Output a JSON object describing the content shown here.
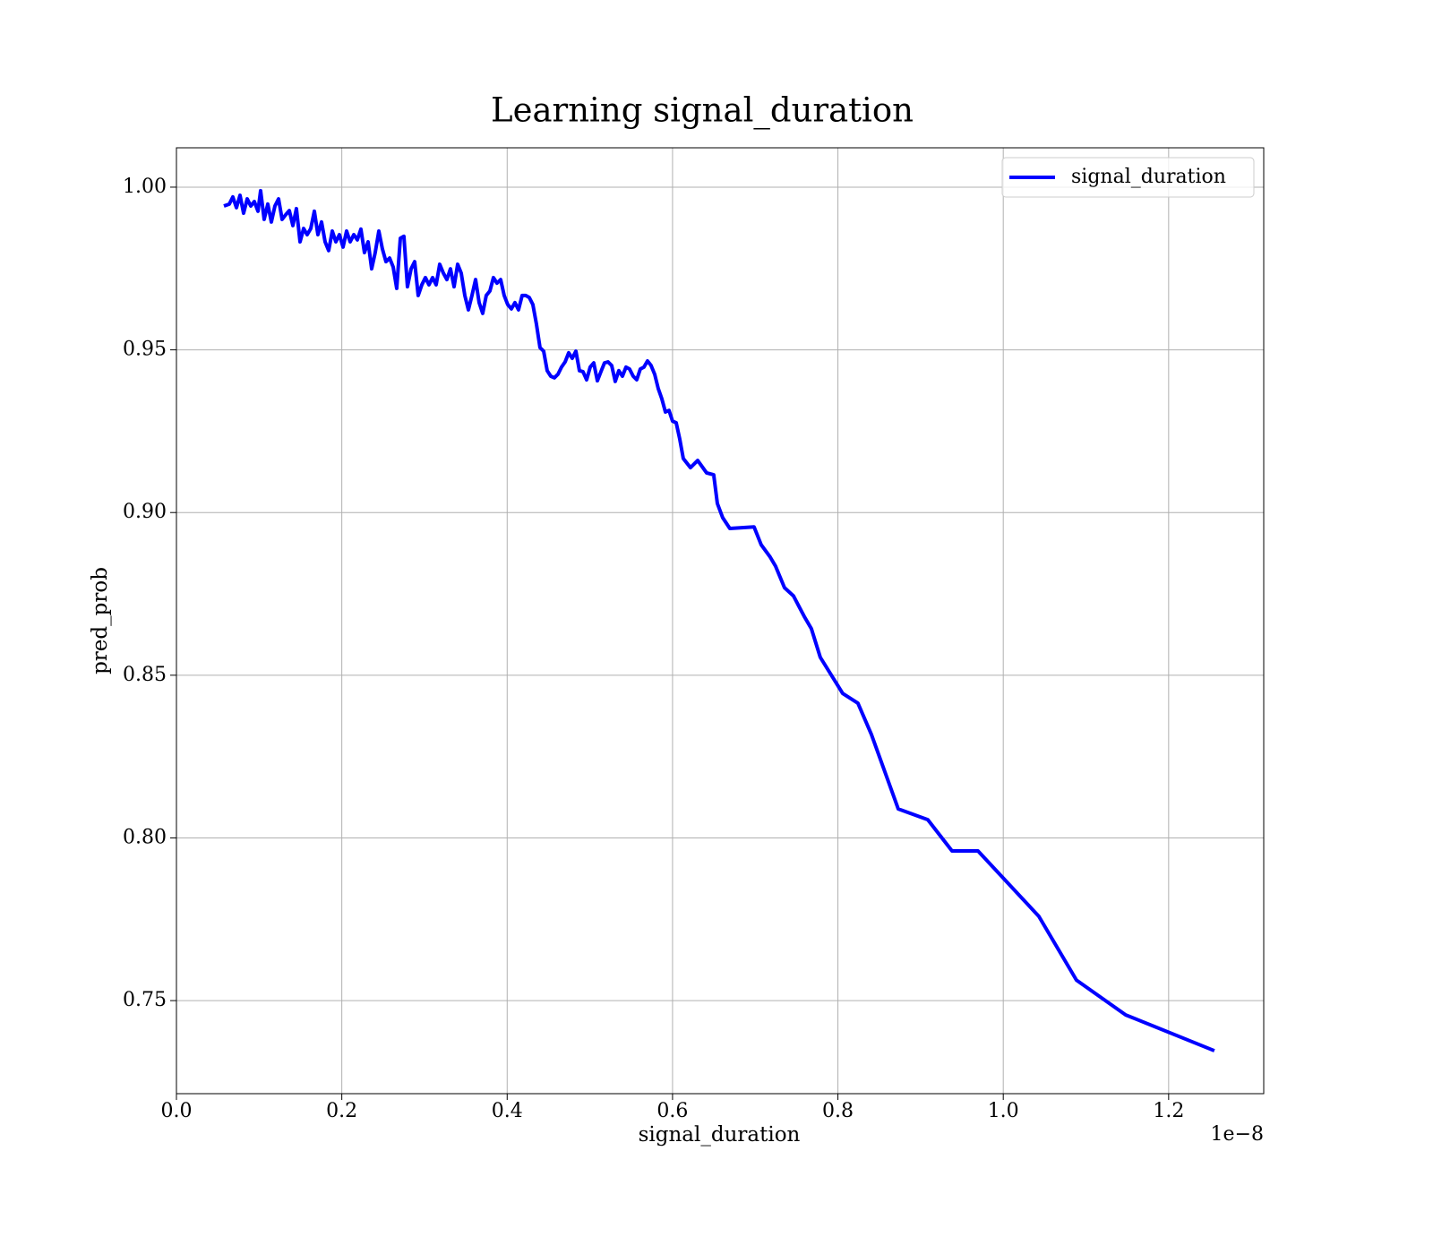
{
  "chart_data": {
    "type": "line",
    "title": "Learning signal_duration",
    "x_label": "signal_duration",
    "y_label": "pred_prob",
    "x_offset_label": "1e−8",
    "legend": "upper right",
    "grid": true,
    "xlim": [
      0,
      1.315
    ],
    "ylim": [
      0.7214,
      1.0121
    ],
    "xticks": [
      {
        "value": 0,
        "label": "0.0"
      },
      {
        "value": 0.2,
        "label": "0.2"
      },
      {
        "value": 0.4,
        "label": "0.4"
      },
      {
        "value": 0.6,
        "label": "0.6"
      },
      {
        "value": 0.8,
        "label": "0.8"
      },
      {
        "value": 1.0,
        "label": "1.0"
      },
      {
        "value": 1.2,
        "label": "1.2"
      }
    ],
    "yticks": [
      {
        "value": 0.75,
        "label": "0.75"
      },
      {
        "value": 0.8,
        "label": "0.80"
      },
      {
        "value": 0.85,
        "label": "0.85"
      },
      {
        "value": 0.9,
        "label": "0.90"
      },
      {
        "value": 0.95,
        "label": "0.95"
      },
      {
        "value": 1.0,
        "label": "1.00"
      }
    ],
    "x": [
      0.0574,
      0.0639,
      0.0682,
      0.0726,
      0.0769,
      0.0812,
      0.0856,
      0.0899,
      0.0942,
      0.0986,
      0.1018,
      0.1061,
      0.1105,
      0.1148,
      0.1191,
      0.1235,
      0.1278,
      0.1321,
      0.1365,
      0.1408,
      0.1451,
      0.1495,
      0.1538,
      0.1581,
      0.1625,
      0.1668,
      0.1711,
      0.1755,
      0.1798,
      0.1841,
      0.1885,
      0.1928,
      0.1971,
      0.2015,
      0.2058,
      0.2101,
      0.2145,
      0.2188,
      0.2231,
      0.2274,
      0.2318,
      0.2361,
      0.2404,
      0.2448,
      0.2491,
      0.2534,
      0.2578,
      0.2621,
      0.2664,
      0.2708,
      0.2751,
      0.2794,
      0.2838,
      0.2881,
      0.2924,
      0.2968,
      0.3011,
      0.3054,
      0.3098,
      0.3141,
      0.3184,
      0.3228,
      0.3271,
      0.3314,
      0.3358,
      0.3401,
      0.3444,
      0.3488,
      0.3531,
      0.3574,
      0.3618,
      0.3661,
      0.3704,
      0.3747,
      0.3791,
      0.3834,
      0.3877,
      0.3921,
      0.3964,
      0.4007,
      0.4051,
      0.4094,
      0.4137,
      0.4181,
      0.4224,
      0.4267,
      0.4311,
      0.4354,
      0.4397,
      0.4441,
      0.4484,
      0.4527,
      0.4571,
      0.4614,
      0.4657,
      0.4701,
      0.4744,
      0.4787,
      0.4831,
      0.4874,
      0.4917,
      0.4961,
      0.5004,
      0.5047,
      0.5091,
      0.5134,
      0.5177,
      0.522,
      0.5264,
      0.5307,
      0.535,
      0.5394,
      0.5437,
      0.548,
      0.5524,
      0.5567,
      0.561,
      0.5654,
      0.5697,
      0.574,
      0.5784,
      0.5827,
      0.587,
      0.5914,
      0.5957,
      0.6,
      0.6044,
      0.6087,
      0.613,
      0.6217,
      0.6304,
      0.6412,
      0.6498,
      0.6542,
      0.6607,
      0.6693,
      0.6986,
      0.7072,
      0.7181,
      0.7246,
      0.7354,
      0.7462,
      0.7592,
      0.7679,
      0.7787,
      0.8058,
      0.8242,
      0.8405,
      0.873,
      0.9087,
      0.938,
      0.9694,
      1.043,
      1.0885,
      1.1481,
      1.2553
    ],
    "series": [
      {
        "name": "signal_duration",
        "color": "#0000ff",
        "values": [
          0.9942,
          0.9948,
          0.997,
          0.9937,
          0.9975,
          0.992,
          0.9964,
          0.9942,
          0.9956,
          0.9926,
          0.9989,
          0.9901,
          0.9948,
          0.9893,
          0.9942,
          0.9964,
          0.9901,
          0.9915,
          0.9928,
          0.9882,
          0.9934,
          0.9832,
          0.9873,
          0.9854,
          0.9873,
          0.9926,
          0.9854,
          0.9893,
          0.9832,
          0.9805,
          0.9865,
          0.9832,
          0.9854,
          0.9816,
          0.9865,
          0.9832,
          0.9854,
          0.9838,
          0.9871,
          0.9799,
          0.9832,
          0.9749,
          0.9799,
          0.9865,
          0.981,
          0.9771,
          0.9782,
          0.9755,
          0.9689,
          0.9843,
          0.9849,
          0.9694,
          0.9749,
          0.9771,
          0.9667,
          0.97,
          0.9722,
          0.97,
          0.9722,
          0.97,
          0.9763,
          0.9736,
          0.9716,
          0.9749,
          0.9694,
          0.9763,
          0.9736,
          0.9667,
          0.9623,
          0.9667,
          0.9716,
          0.9645,
          0.9612,
          0.9667,
          0.9681,
          0.9722,
          0.9705,
          0.9716,
          0.9667,
          0.9639,
          0.9626,
          0.9645,
          0.9623,
          0.9667,
          0.9667,
          0.9661,
          0.9639,
          0.9579,
          0.9507,
          0.9496,
          0.9436,
          0.9419,
          0.9414,
          0.9425,
          0.9447,
          0.9463,
          0.9491,
          0.9474,
          0.9496,
          0.9436,
          0.9433,
          0.9408,
          0.9447,
          0.946,
          0.9405,
          0.9433,
          0.946,
          0.9463,
          0.9452,
          0.9403,
          0.9436,
          0.9419,
          0.9447,
          0.9441,
          0.9419,
          0.9408,
          0.9441,
          0.9447,
          0.9466,
          0.9452,
          0.9425,
          0.9381,
          0.935,
          0.9309,
          0.9314,
          0.9281,
          0.9276,
          0.9226,
          0.9166,
          0.9138,
          0.916,
          0.9122,
          0.9116,
          0.9028,
          0.8984,
          0.8951,
          0.8956,
          0.8901,
          0.8863,
          0.8835,
          0.8769,
          0.8744,
          0.8681,
          0.8643,
          0.8555,
          0.8444,
          0.8414,
          0.8318,
          0.8089,
          0.8056,
          0.796,
          0.796,
          0.7759,
          0.7563,
          0.7456,
          0.7346
        ]
      }
    ]
  }
}
